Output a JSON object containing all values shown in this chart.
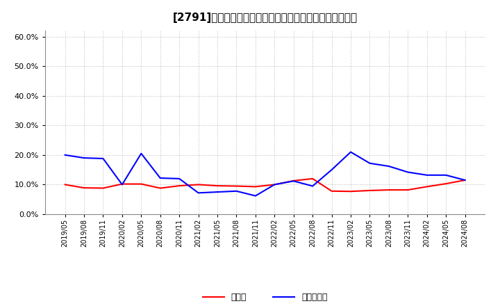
{
  "title": "[2791]　現顔金、有利子負債の総資産に対する比率の推移",
  "x_labels": [
    "2019/05",
    "2019/08",
    "2019/11",
    "2020/02",
    "2020/05",
    "2020/08",
    "2020/11",
    "2021/02",
    "2021/05",
    "2021/08",
    "2021/11",
    "2022/02",
    "2022/05",
    "2022/08",
    "2022/11",
    "2023/02",
    "2023/05",
    "2023/08",
    "2023/11",
    "2024/02",
    "2024/05",
    "2024/08"
  ],
  "cash": [
    0.1,
    0.089,
    0.088,
    0.102,
    0.102,
    0.088,
    0.096,
    0.1,
    0.096,
    0.095,
    0.093,
    0.1,
    0.113,
    0.12,
    0.078,
    0.077,
    0.08,
    0.082,
    0.082,
    0.093,
    0.103,
    0.115
  ],
  "debt": [
    0.2,
    0.19,
    0.188,
    0.1,
    0.205,
    0.122,
    0.12,
    0.072,
    0.075,
    0.078,
    0.062,
    0.1,
    0.112,
    0.095,
    0.15,
    0.21,
    0.172,
    0.162,
    0.142,
    0.132,
    0.132,
    0.115
  ],
  "cash_color": "#ff0000",
  "debt_color": "#0000ff",
  "bg_color": "#ffffff",
  "grid_color": "#aaaaaa",
  "ylim": [
    0.0,
    0.62
  ],
  "yticks": [
    0.0,
    0.1,
    0.2,
    0.3,
    0.4,
    0.5,
    0.6
  ],
  "legend_cash": "現顔金",
  "legend_debt": "有利子負債",
  "title_fontsize": 11
}
